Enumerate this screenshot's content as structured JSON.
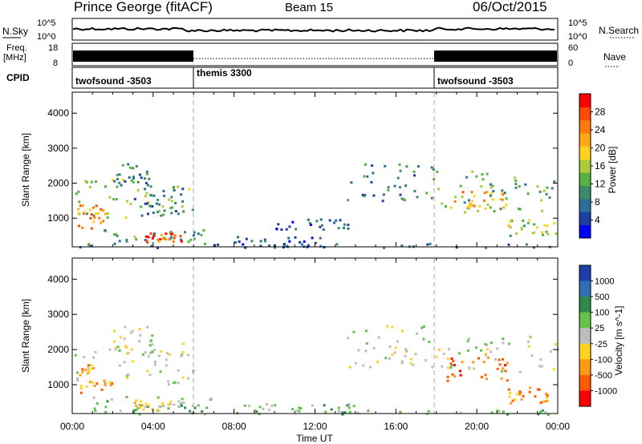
{
  "header": {
    "station": "Prince George (fitACF)",
    "beam": "Beam 15",
    "date": "06/Oct/2015"
  },
  "noise_panel": {
    "left_label": "N.Sky",
    "right_label": "N.Search",
    "left_ticks": [
      "10^5",
      "10^0"
    ],
    "right_ticks": [
      "10^5",
      "10^0"
    ]
  },
  "freq_panel": {
    "left_label_line1": "Freq.",
    "left_label_line2": "[MHz]",
    "left_ticks": [
      "18",
      "8"
    ],
    "right_label": "Nave",
    "right_ticks": [
      "60",
      "0"
    ]
  },
  "cpid_panel": {
    "label": "CPID",
    "segments": [
      {
        "name": "twofsound -3503",
        "start_hour": 0,
        "end_hour": 6
      },
      {
        "name": "themis 3300",
        "start_hour": 6,
        "end_hour": 18
      },
      {
        "name": "twofsound -3503",
        "start_hour": 18,
        "end_hour": 24
      }
    ]
  },
  "chart_data": [
    {
      "type": "heatmap",
      "title": "Power",
      "xlabel": "Time UT",
      "ylabel": "Slant Range [km]",
      "xlim": [
        0,
        24
      ],
      "ylim": [
        180,
        4600
      ],
      "x_ticks": [
        "00:00",
        "04:00",
        "08:00",
        "12:00",
        "16:00",
        "20:00",
        "00:00"
      ],
      "y_ticks": [
        1000,
        2000,
        3000,
        4000
      ],
      "colorbar": {
        "label": "Power [dB]",
        "ticks": [
          4,
          8,
          12,
          16,
          20,
          24,
          28
        ],
        "range": [
          0,
          32
        ],
        "colors": [
          "#0000ff",
          "#1e3fa0",
          "#2a6f9a",
          "#3d8a6a",
          "#58b040",
          "#a8cc3c",
          "#ffd21e",
          "#ffaa14",
          "#ff7a0a",
          "#ff4a00",
          "#ff0000"
        ]
      },
      "regions": [
        {
          "t": [
            0.1,
            6.0
          ],
          "r": [
            1000,
            2200
          ],
          "v": 14
        },
        {
          "t": [
            0.2,
            1.8
          ],
          "r": [
            700,
            1400
          ],
          "v": 24
        },
        {
          "t": [
            2.0,
            4.0
          ],
          "r": [
            1900,
            2600
          ],
          "v": 9
        },
        {
          "t": [
            3.0,
            5.5
          ],
          "r": [
            1100,
            1900
          ],
          "v": 8
        },
        {
          "t": [
            1.5,
            6.5
          ],
          "r": [
            300,
            700
          ],
          "v": 10
        },
        {
          "t": [
            3.5,
            5.5
          ],
          "r": [
            300,
            600
          ],
          "v": 26
        },
        {
          "t": [
            8.0,
            13.0
          ],
          "r": [
            200,
            500
          ],
          "v": 6
        },
        {
          "t": [
            10.0,
            14.0
          ],
          "r": [
            700,
            1000
          ],
          "v": 7
        },
        {
          "t": [
            13.5,
            18.0
          ],
          "r": [
            1500,
            2600
          ],
          "v": 9
        },
        {
          "t": [
            18.0,
            24.0
          ],
          "r": [
            1200,
            2400
          ],
          "v": 12
        },
        {
          "t": [
            18.5,
            21.5
          ],
          "r": [
            1300,
            1800
          ],
          "v": 22
        },
        {
          "t": [
            21.5,
            24.0
          ],
          "r": [
            500,
            1000
          ],
          "v": 16
        },
        {
          "t": [
            0.0,
            24.0
          ],
          "r": [
            180,
            300
          ],
          "v": 8
        }
      ]
    },
    {
      "type": "heatmap",
      "title": "Velocity",
      "xlabel": "Time UT",
      "ylabel": "Slant Range [km]",
      "xlim": [
        0,
        24
      ],
      "ylim": [
        180,
        4600
      ],
      "x_ticks": [
        "00:00",
        "04:00",
        "08:00",
        "12:00",
        "16:00",
        "20:00",
        "00:00"
      ],
      "y_ticks": [
        1000,
        2000,
        3000,
        4000
      ],
      "colorbar": {
        "label": "Velocity [m s^-1]",
        "ticks": [
          "1000",
          "500",
          "100",
          "25",
          "-25",
          "-100",
          "-500",
          "-1000"
        ],
        "colors": [
          "#1f3ea8",
          "#2f6fb4",
          "#2d8a4a",
          "#62c24a",
          "#bdbdbd",
          "#ffd21e",
          "#ff9a14",
          "#ff5a00",
          "#ff0000"
        ]
      },
      "regions": [
        {
          "t": [
            0.1,
            6.0
          ],
          "r": [
            1000,
            2200
          ],
          "c": 4
        },
        {
          "t": [
            0.2,
            2.0
          ],
          "r": [
            800,
            1600
          ],
          "c": 6
        },
        {
          "t": [
            2.0,
            4.0
          ],
          "r": [
            1900,
            2700
          ],
          "c": 4
        },
        {
          "t": [
            1.0,
            7.0
          ],
          "r": [
            300,
            700
          ],
          "c": 3
        },
        {
          "t": [
            3.0,
            5.5
          ],
          "r": [
            300,
            600
          ],
          "c": 5
        },
        {
          "t": [
            8.0,
            14.0
          ],
          "r": [
            200,
            500
          ],
          "c": 3
        },
        {
          "t": [
            13.5,
            18.0
          ],
          "r": [
            1500,
            2700
          ],
          "c": 4
        },
        {
          "t": [
            18.0,
            24.0
          ],
          "r": [
            1400,
            2400
          ],
          "c": 4
        },
        {
          "t": [
            18.5,
            21.5
          ],
          "r": [
            1100,
            1800
          ],
          "c": 7
        },
        {
          "t": [
            21.5,
            23.5
          ],
          "r": [
            500,
            1000
          ],
          "c": 6
        },
        {
          "t": [
            0.0,
            24.0
          ],
          "r": [
            180,
            300
          ],
          "c": 3
        }
      ]
    }
  ]
}
